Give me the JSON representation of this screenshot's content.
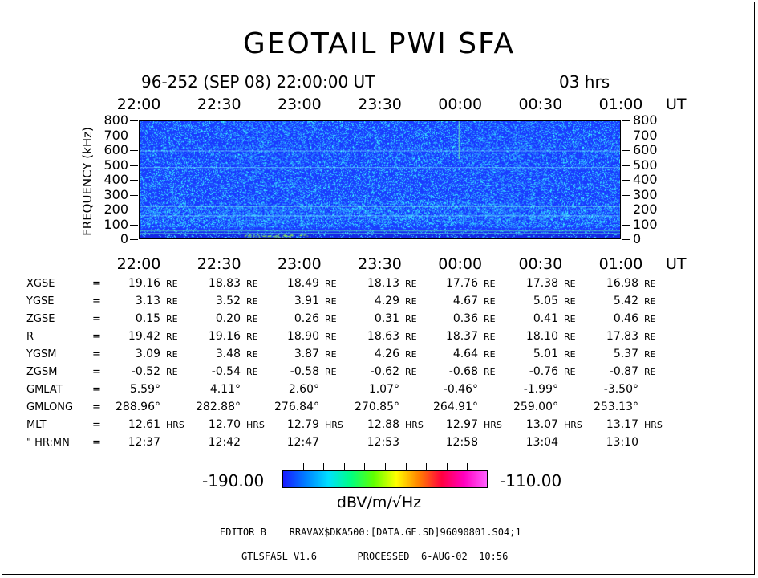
{
  "title": "GEOTAIL PWI SFA",
  "header": {
    "date": "96-252 (SEP 08) 22:00:00 UT",
    "duration": "03 hrs"
  },
  "axis": {
    "ut_label": "UT",
    "ylabel": "FREQUENCY (kHz)"
  },
  "colors": {
    "background": "#1a3cff",
    "noise": "#2fa8ff",
    "band": "#38e8ff",
    "lines": "#7fffd4"
  },
  "chart_data": {
    "type": "heatmap",
    "title": "GEOTAIL PWI SFA",
    "xlabel": "UT",
    "ylabel": "FREQUENCY (kHz)",
    "x_ticks": [
      "22:00",
      "22:30",
      "23:00",
      "23:30",
      "00:00",
      "00:30",
      "01:00"
    ],
    "y_ticks": [
      "800",
      "700",
      "600",
      "500",
      "400",
      "300",
      "200",
      "100",
      "0"
    ],
    "ylim": [
      0,
      800
    ],
    "color_scale": {
      "min": -190.0,
      "max": -110.0,
      "label": "dBV/m/√Hz"
    }
  },
  "ephemeris": {
    "rows": [
      {
        "label": "XGSE",
        "values": [
          "19.16",
          "18.83",
          "18.49",
          "18.13",
          "17.76",
          "17.38",
          "16.98"
        ],
        "unit": "RE"
      },
      {
        "label": "YGSE",
        "values": [
          "3.13",
          "3.52",
          "3.91",
          "4.29",
          "4.67",
          "5.05",
          "5.42"
        ],
        "unit": "RE"
      },
      {
        "label": "ZGSE",
        "values": [
          "0.15",
          "0.20",
          "0.26",
          "0.31",
          "0.36",
          "0.41",
          "0.46"
        ],
        "unit": "RE"
      },
      {
        "label": "R",
        "values": [
          "19.42",
          "19.16",
          "18.90",
          "18.63",
          "18.37",
          "18.10",
          "17.83"
        ],
        "unit": "RE"
      },
      {
        "label": "YGSM",
        "values": [
          "3.09",
          "3.48",
          "3.87",
          "4.26",
          "4.64",
          "5.01",
          "5.37"
        ],
        "unit": "RE"
      },
      {
        "label": "ZGSM",
        "values": [
          "-0.52",
          "-0.54",
          "-0.58",
          "-0.62",
          "-0.68",
          "-0.76",
          "-0.87"
        ],
        "unit": "RE"
      },
      {
        "label": "GMLAT",
        "values": [
          "5.59°",
          "4.11°",
          "2.60°",
          "1.07°",
          "-0.46°",
          "-1.99°",
          "-3.50°"
        ],
        "unit": ""
      },
      {
        "label": "GMLONG",
        "values": [
          "288.96°",
          "282.88°",
          "276.84°",
          "270.85°",
          "264.91°",
          "259.00°",
          "253.13°"
        ],
        "unit": ""
      },
      {
        "label": "MLT",
        "values": [
          "12.61",
          "12.70",
          "12.79",
          "12.88",
          "12.97",
          "13.07",
          "13.17"
        ],
        "unit": "HRS"
      },
      {
        "label": "\" HR:MN",
        "values": [
          "12:37",
          "12:42",
          "12:47",
          "12:53",
          "12:58",
          "13:04",
          "13:10"
        ],
        "unit": ""
      }
    ]
  },
  "colorbar": {
    "min_label": "-190.00",
    "max_label": "-110.00",
    "unit": "dBV/m/√Hz"
  },
  "footer": {
    "line1": "EDITOR B    RRAVAX$DKA500:[DATA.GE.SD]96090801.S04;1",
    "line2": "GTLSFA5L V1.6       PROCESSED  6-AUG-02  10:56"
  }
}
